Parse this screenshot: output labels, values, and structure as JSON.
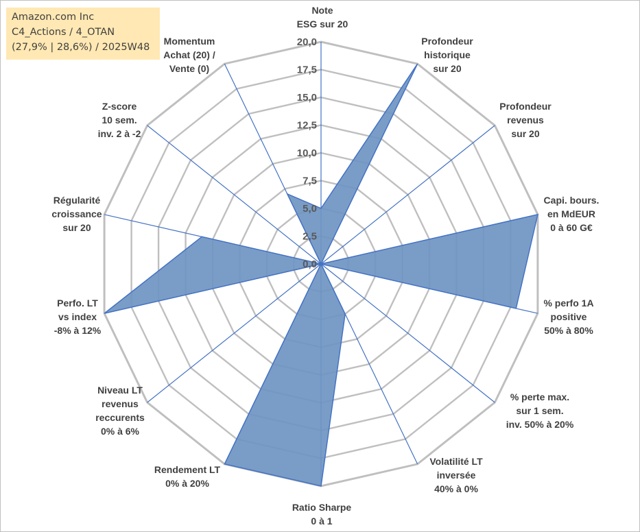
{
  "title_box": {
    "line1": "Amazon.com Inc",
    "line2": "C4_Actions / 4_OTAN",
    "line3": "(27,9% | 28,6%) / 2025W48"
  },
  "colors": {
    "fill": "#6f95c2",
    "stroke": "#4472c4",
    "grid": "#bfbfbf",
    "title_bg": "#ffe8b3"
  },
  "chart_data": {
    "type": "radar",
    "title": "",
    "range": [
      0,
      20
    ],
    "ticks": [
      "0,0",
      "2,5",
      "5,0",
      "7,5",
      "10,0",
      "12,5",
      "15,0",
      "17,5",
      "20,0"
    ],
    "grid": true,
    "legend": "none",
    "categories": [
      [
        "Note",
        "ESG sur 20"
      ],
      [
        "Profondeur",
        "historique",
        "sur 20"
      ],
      [
        "Profondeur",
        "revenus",
        "sur 20"
      ],
      [
        "Capi. bours.",
        "en MdEUR",
        "0 à 60 G€"
      ],
      [
        "% perfo 1A",
        "positive",
        "50% à 80%"
      ],
      [
        "% perte max.",
        "sur 1 sem.",
        "inv. 50% à 20%"
      ],
      [
        "Volatilité LT",
        "inversée",
        "40% à 0%"
      ],
      [
        "Ratio Sharpe",
        "0 à 1"
      ],
      [
        "Rendement LT",
        "0% à 20%"
      ],
      [
        "Niveau LT",
        "revenus",
        "reccurents",
        "0% à 6%"
      ],
      [
        "Perfo. LT",
        "vs index",
        "-8% à 12%"
      ],
      [
        "Régularité",
        "croissance",
        "sur 20"
      ],
      [
        "Z-score",
        "10 sem.",
        "inv. 2 à -2"
      ],
      [
        "Momentum",
        "Achat (20) /",
        "Vente (0)"
      ]
    ],
    "series": [
      {
        "values": [
          5.0,
          20.0,
          0.0,
          20.0,
          18.0,
          0.0,
          5.0,
          20.0,
          20.0,
          0.0,
          20.0,
          11.0,
          0.0,
          7.0
        ]
      }
    ]
  }
}
